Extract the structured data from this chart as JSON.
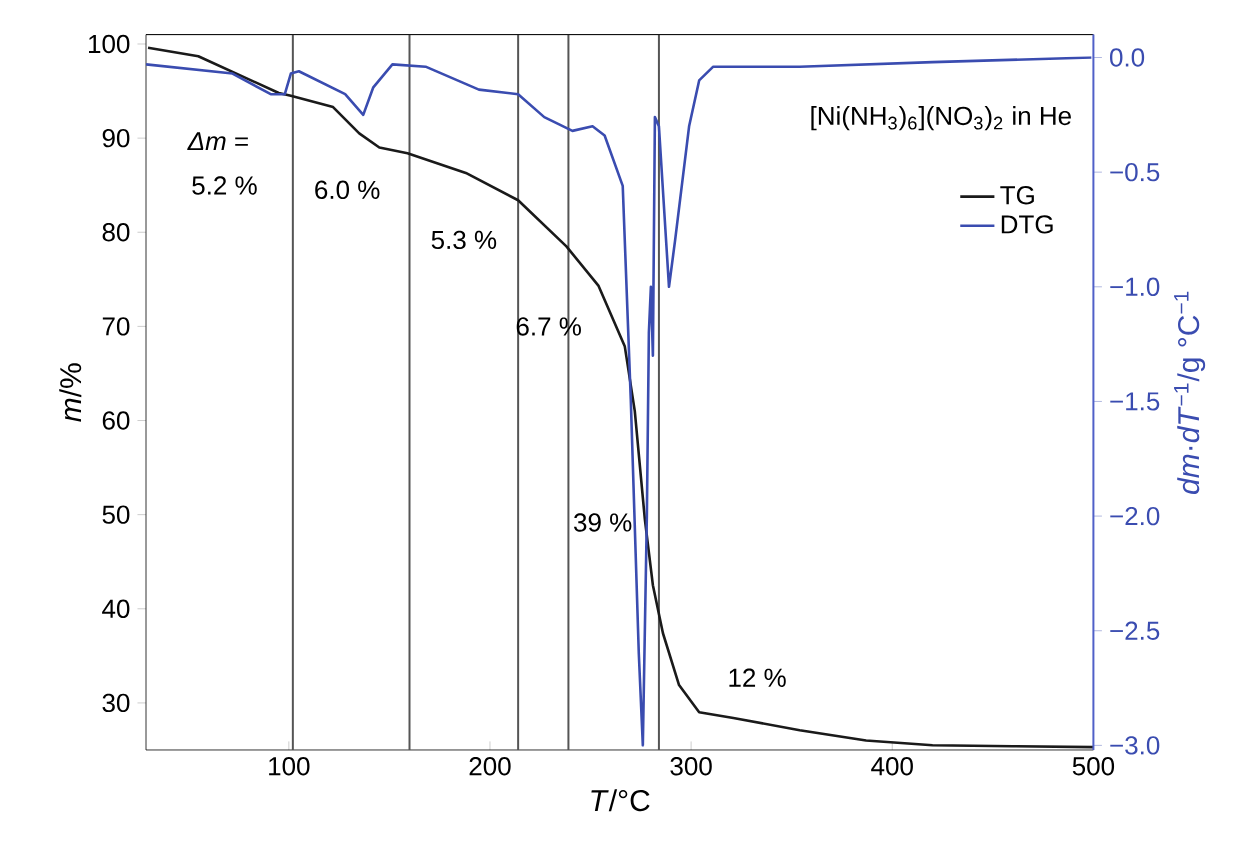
{
  "chart_data": {
    "type": "line",
    "title": "[Ni(NH$_{3}$)$_{6}$](NO$_{3}$)$_{2}$ in He",
    "xlabel": "*T*/°C",
    "ylabel": "*m*/%",
    "y2label": "*dm*·*dT*$^{−1}$/g °C$^{−1}$",
    "xlim": [
      29,
      500
    ],
    "xticks": [
      100,
      200,
      300,
      400,
      500
    ],
    "ylim": [
      25,
      101
    ],
    "yticks": [
      30,
      40,
      50,
      60,
      70,
      80,
      90,
      100
    ],
    "y2lim": [
      -3.02,
      0.1
    ],
    "y2ticks": [
      {
        "value": 0,
        "label": "0.0"
      },
      {
        "value": -0.5,
        "label": "−0.5"
      },
      {
        "value": -1,
        "label": "−1.0"
      },
      {
        "value": -1.5,
        "label": "−1.5"
      },
      {
        "value": -2,
        "label": "−2.0"
      },
      {
        "value": -2.5,
        "label": "−2.5"
      },
      {
        "value": -3,
        "label": "−3.0"
      }
    ],
    "legend": "top right",
    "series": [
      {
        "name": "TG",
        "color": "#1a1a1a",
        "x": [
          30,
          55,
          95,
          101,
          122,
          135,
          145,
          159,
          188,
          214,
          238,
          254,
          267,
          272,
          277,
          281,
          286,
          294,
          304,
          321,
          354,
          387,
          420,
          460,
          500
        ],
        "values": [
          99.6,
          98.7,
          94.8,
          94.5,
          93.3,
          90.5,
          89,
          88.4,
          86.3,
          83.4,
          78.5,
          74.3,
          67.9,
          61,
          49.5,
          42.5,
          37.4,
          31.9,
          29,
          28.4,
          27.1,
          26,
          25.5,
          25.4,
          25.3
        ]
      },
      {
        "name": "DTG",
        "color": "#3a4cb0",
        "axis": "y2",
        "x": [
          29,
          72,
          91,
          98,
          101,
          105,
          128,
          137,
          142,
          151.5,
          168,
          194.5,
          214,
          227,
          241,
          251,
          257,
          266,
          270,
          274,
          276,
          278,
          279,
          280,
          281,
          282,
          284,
          289,
          292,
          299,
          304,
          311,
          354,
          420,
          499
        ],
        "values": [
          -0.03,
          -0.07,
          -0.16,
          -0.16,
          -0.07,
          -0.06,
          -0.16,
          -0.25,
          -0.13,
          -0.03,
          -0.04,
          -0.14,
          -0.16,
          -0.26,
          -0.32,
          -0.3,
          -0.34,
          -0.56,
          -1.49,
          -2.6,
          -3.0,
          -2.0,
          -1.2,
          -1.0,
          -1.3,
          -0.26,
          -0.3,
          -1.0,
          -0.8,
          -0.3,
          -0.1,
          -0.04,
          -0.04,
          -0.02,
          0.0
        ]
      }
    ],
    "ref_lines": [
      {
        "axis": "x",
        "value": 102,
        "color": "#555555"
      },
      {
        "axis": "x",
        "value": 160,
        "color": "#555555"
      },
      {
        "axis": "x",
        "value": 214,
        "color": "#555555"
      },
      {
        "axis": "x",
        "value": 239,
        "color": "#555555"
      },
      {
        "axis": "x",
        "value": 284,
        "color": "#555555"
      }
    ],
    "annotations": [
      "*Δm* =",
      "5.2 %",
      "6.0 %",
      "5.3 %",
      "6.7 %",
      "39 %",
      "12 %"
    ]
  }
}
